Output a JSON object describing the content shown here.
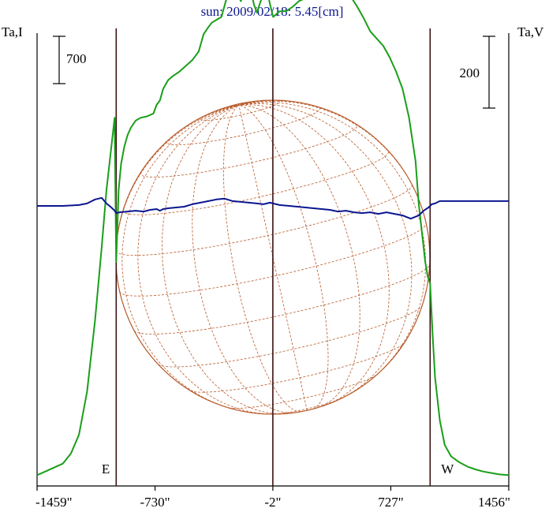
{
  "chart_data": {
    "type": "line",
    "title": "sun: 2009/02/18: 5.45[cm]",
    "left_axis_label": "Ta,I",
    "right_axis_label": "Ta,V",
    "x_ticks": [
      "-1459\"",
      "-730\"",
      "-2\"",
      "727\"",
      "1456\""
    ],
    "x_tick_values": [
      -1459,
      -730,
      -2,
      727,
      1456
    ],
    "xlim": [
      -1459,
      1456
    ],
    "limb_markers": [
      {
        "label": "E",
        "x": -970
      },
      {
        "label": "W",
        "x": 970
      }
    ],
    "center_line_x": -2,
    "scale_bars": [
      {
        "label": "700",
        "value": 700,
        "axis": "Ta,I"
      },
      {
        "label": "200",
        "value": 200,
        "axis": "Ta,V"
      }
    ],
    "series": [
      {
        "axis": "Ta,I",
        "color": "#1a9e1a",
        "ylim": [
          0,
          3000
        ],
        "x": [
          -1459,
          -1400,
          -1300,
          -1250,
          -1200,
          -1150,
          -1100,
          -1060,
          -1030,
          -1000,
          -980,
          -970,
          -955,
          -940,
          -920,
          -900,
          -880,
          -850,
          -820,
          -780,
          -740,
          -720,
          -700,
          -680,
          -650,
          -620,
          -580,
          -540,
          -500,
          -460,
          -430,
          -400,
          -380,
          -350,
          -320,
          -290,
          -260,
          -230,
          -200,
          -170,
          -140,
          -120,
          -100,
          -80,
          -60,
          -40,
          -20,
          0,
          40,
          80,
          120,
          160,
          200,
          240,
          280,
          320,
          360,
          400,
          440,
          480,
          520,
          560,
          600,
          640,
          680,
          720,
          760,
          800,
          840,
          880,
          900,
          920,
          940,
          955,
          970,
          985,
          1000,
          1030,
          1060,
          1100,
          1150,
          1200,
          1250,
          1300,
          1350,
          1400,
          1456
        ],
        "values": [
          20,
          50,
          100,
          170,
          300,
          600,
          1100,
          1600,
          2000,
          2300,
          2500,
          1500,
          2000,
          2180,
          2300,
          2380,
          2430,
          2480,
          2500,
          2510,
          2530,
          2590,
          2620,
          2700,
          2760,
          2790,
          2820,
          2860,
          2900,
          2960,
          3080,
          3130,
          3160,
          3180,
          3200,
          3320,
          3360,
          3380,
          3310,
          3390,
          3410,
          3290,
          3230,
          3300,
          3360,
          3400,
          3290,
          3200,
          3240,
          3240,
          3270,
          3310,
          3330,
          3350,
          3400,
          3350,
          3330,
          3390,
          3410,
          3340,
          3270,
          3190,
          3100,
          3050,
          3000,
          2920,
          2820,
          2700,
          2500,
          2200,
          1900,
          1700,
          1500,
          1400,
          1350,
          1000,
          700,
          400,
          230,
          150,
          110,
          80,
          60,
          45,
          35,
          25,
          20
        ]
      },
      {
        "axis": "Ta,V",
        "color": "#0b1790",
        "ylim": [
          -1700,
          1000
        ],
        "x": [
          -1459,
          -1300,
          -1200,
          -1150,
          -1100,
          -1060,
          -1030,
          -1000,
          -980,
          -970,
          -950,
          -900,
          -850,
          -800,
          -760,
          -720,
          -700,
          -680,
          -650,
          -600,
          -550,
          -500,
          -450,
          -400,
          -350,
          -300,
          -250,
          -200,
          -150,
          -100,
          -60,
          -20,
          0,
          40,
          100,
          150,
          200,
          250,
          300,
          350,
          400,
          450,
          500,
          550,
          600,
          650,
          700,
          750,
          800,
          850,
          900,
          930,
          960,
          980,
          1000,
          1030,
          1060,
          1100,
          1200,
          1300,
          1456
        ],
        "values": [
          0,
          0,
          5,
          15,
          40,
          50,
          15,
          -10,
          -30,
          -45,
          -40,
          -35,
          -30,
          -35,
          -25,
          -20,
          -30,
          -20,
          -15,
          -10,
          -5,
          10,
          20,
          30,
          40,
          45,
          30,
          25,
          20,
          15,
          10,
          20,
          15,
          5,
          0,
          -5,
          -10,
          -15,
          -20,
          -25,
          -35,
          -30,
          -40,
          -45,
          -40,
          -50,
          -40,
          -50,
          -60,
          -80,
          -60,
          -30,
          -10,
          10,
          15,
          30,
          30,
          30,
          30,
          30,
          30
        ]
      }
    ],
    "solar_disk": {
      "radius": 970,
      "center_x": -2,
      "color": "#b85a2a"
    }
  }
}
